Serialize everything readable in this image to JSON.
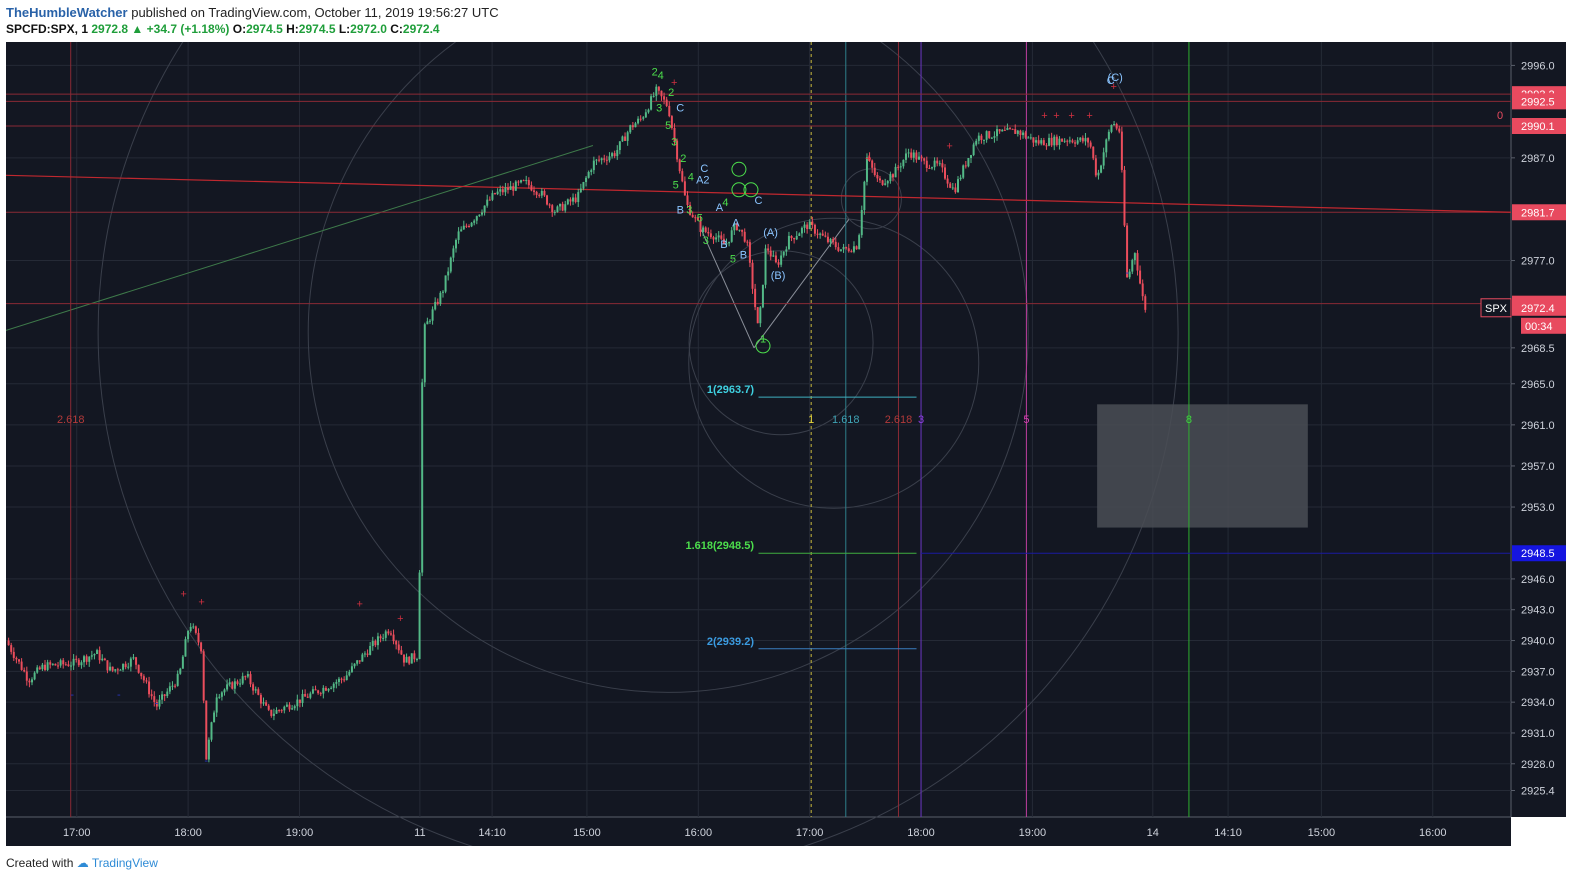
{
  "header": {
    "username": "TheHumbleWatcher",
    "published": "published on TradingView.com, October 11, 2019 19:56:27 UTC",
    "symbol": "SPCFD:SPX, 1",
    "last": "2972.8",
    "change": "+34.7 (+1.18%)",
    "o_label": "O:",
    "o": "2974.5",
    "h_label": "H:",
    "h": "2974.5",
    "l_label": "L:",
    "l": "2972.0",
    "c_label": "C:",
    "c": "2972.4"
  },
  "footer": {
    "created": "Created with",
    "brand": "TradingView"
  },
  "colors": {
    "bg": "#131722",
    "up": "#53b987",
    "down": "#eb4d5c",
    "grid": "#252a36"
  },
  "chart_data": {
    "type": "candlestick",
    "y_axis": {
      "range": [
        2923.5,
        2997.5
      ],
      "ticks": [
        "2996.0",
        "2987.0",
        "2977.0",
        "2968.5",
        "2965.0",
        "2961.0",
        "2957.0",
        "2953.0",
        "2946.0",
        "2943.0",
        "2940.0",
        "2937.0",
        "2934.0",
        "2931.0",
        "2928.0",
        "2925.4"
      ],
      "tick_values": [
        2996.0,
        2987.0,
        2977.0,
        2968.5,
        2965.0,
        2961.0,
        2957.0,
        2953.0,
        2946.0,
        2943.0,
        2940.0,
        2937.0,
        2934.0,
        2931.0,
        2928.0,
        2925.4
      ]
    },
    "x_axis": {
      "labels": [
        "17:00",
        "18:00",
        "19:00",
        "11",
        "14:10",
        "15:00",
        "16:00",
        "17:00",
        "18:00",
        "19:00",
        "14",
        "14:10",
        "15:00",
        "16:00"
      ],
      "label_pos": [
        0.047,
        0.121,
        0.195,
        0.275,
        0.323,
        0.386,
        0.46,
        0.534,
        0.608,
        0.682,
        0.762,
        0.812,
        0.874,
        0.948
      ]
    },
    "price_tags": [
      {
        "value": 2993.2,
        "text": "2993.2",
        "color": "#e84a5f"
      },
      {
        "value": 2992.5,
        "text": "2992.5",
        "color": "#e84a5f"
      },
      {
        "value": 2990.1,
        "text": "2990.1",
        "color": "#e84a5f"
      },
      {
        "value": 2981.7,
        "text": "2981.7",
        "color": "#e84a5f"
      },
      {
        "value": 2972.8,
        "text": "2972.8",
        "color": "#e84a5f"
      },
      {
        "value": 2972.4,
        "text": "2972.4",
        "color": "#e84a5f"
      },
      {
        "value": 2948.5,
        "text": "2948.5",
        "color": "#1515e0"
      }
    ],
    "countdown": "00:34",
    "symbol_tag": "SPX",
    "fib_labels": [
      {
        "text": "1(2963.7)",
        "value": 2963.7,
        "color": "#3fd0e0"
      },
      {
        "text": "1.618(2948.5)",
        "value": 2948.5,
        "color": "#4cde4c"
      },
      {
        "text": "2(2939.2)",
        "value": 2939.2,
        "color": "#3b9be0"
      }
    ],
    "time_markers": [
      {
        "text": "2.618",
        "pos": 0.043,
        "color": "#b23a3a"
      },
      {
        "text": "1",
        "pos": 0.535,
        "color": "#e3d33c"
      },
      {
        "text": "1.618",
        "pos": 0.558,
        "color": "#3fa3b5"
      },
      {
        "text": "2.618",
        "pos": 0.593,
        "color": "#b23a3a"
      },
      {
        "text": "3",
        "pos": 0.608,
        "color": "#8f3fe0"
      },
      {
        "text": "5",
        "pos": 0.678,
        "color": "#d63fb2"
      },
      {
        "text": "8",
        "pos": 0.786,
        "color": "#3fd63f"
      }
    ],
    "zero_label": "0",
    "wave_labels": [
      "2",
      "4",
      "2",
      "3",
      "5",
      "3",
      "C",
      "2",
      "5",
      "4",
      "A2",
      "C",
      "B",
      "3",
      "A",
      "C",
      "A",
      "B",
      "5",
      "B",
      "4",
      "3",
      "5",
      "1",
      "(A)",
      "(B)",
      "C",
      "(C)"
    ],
    "price_path": [
      [
        0,
        2940.0
      ],
      [
        0.015,
        2936.2
      ],
      [
        0.025,
        2937.5
      ],
      [
        0.045,
        2937.8
      ],
      [
        0.06,
        2938.8
      ],
      [
        0.07,
        2937.0
      ],
      [
        0.085,
        2938.2
      ],
      [
        0.1,
        2933.6
      ],
      [
        0.115,
        2936.5
      ],
      [
        0.122,
        2941.8
      ],
      [
        0.13,
        2939.2
      ],
      [
        0.133,
        2928.5
      ],
      [
        0.14,
        2934.8
      ],
      [
        0.16,
        2936.5
      ],
      [
        0.175,
        2932.8
      ],
      [
        0.195,
        2934.2
      ],
      [
        0.225,
        2936.4
      ],
      [
        0.24,
        2939.0
      ],
      [
        0.255,
        2941.2
      ],
      [
        0.265,
        2938.0
      ],
      [
        0.274,
        2938.6
      ],
      [
        0.277,
        2970.0
      ],
      [
        0.285,
        2972.5
      ],
      [
        0.29,
        2974.0
      ],
      [
        0.3,
        2979.5
      ],
      [
        0.31,
        2981.0
      ],
      [
        0.325,
        2983.5
      ],
      [
        0.345,
        2984.6
      ],
      [
        0.355,
        2983.6
      ],
      [
        0.365,
        2981.8
      ],
      [
        0.38,
        2983.2
      ],
      [
        0.39,
        2986.5
      ],
      [
        0.405,
        2987.5
      ],
      [
        0.415,
        2990.0
      ],
      [
        0.422,
        2990.8
      ],
      [
        0.432,
        2993.5
      ],
      [
        0.44,
        2992.0
      ],
      [
        0.445,
        2988.0
      ],
      [
        0.452,
        2982.5
      ],
      [
        0.462,
        2980.0
      ],
      [
        0.47,
        2979.5
      ],
      [
        0.478,
        2978.5
      ],
      [
        0.485,
        2980.5
      ],
      [
        0.492,
        2979.0
      ],
      [
        0.5,
        2970.0
      ],
      [
        0.505,
        2978.5
      ],
      [
        0.512,
        2976.5
      ],
      [
        0.52,
        2979.0
      ],
      [
        0.533,
        2980.5
      ],
      [
        0.545,
        2979.0
      ],
      [
        0.556,
        2978.0
      ],
      [
        0.566,
        2978.5
      ],
      [
        0.572,
        2987.0
      ],
      [
        0.58,
        2984.5
      ],
      [
        0.59,
        2985.5
      ],
      [
        0.6,
        2987.6
      ],
      [
        0.61,
        2986.5
      ],
      [
        0.62,
        2986.2
      ],
      [
        0.63,
        2983.8
      ],
      [
        0.645,
        2989.0
      ],
      [
        0.66,
        2989.4
      ],
      [
        0.672,
        2989.6
      ],
      [
        0.685,
        2988.5
      ],
      [
        0.705,
        2988.8
      ],
      [
        0.72,
        2988.6
      ],
      [
        0.725,
        2985.0
      ],
      [
        0.73,
        2988.0
      ],
      [
        0.735,
        2990.5
      ],
      [
        0.74,
        2989.6
      ],
      [
        0.745,
        2975.0
      ],
      [
        0.75,
        2978.0
      ],
      [
        0.755,
        2973.5
      ],
      [
        0.757,
        2972.4
      ]
    ],
    "horizontal_levels": [
      2993.2,
      2992.5,
      2990.1,
      2981.7,
      2972.8
    ],
    "trendline_start": [
      0,
      2985.3
    ],
    "trendline_end": [
      1,
      2981.7
    ],
    "grey_box": {
      "x0": 0.725,
      "x1": 0.865,
      "y0": 2963.0,
      "y1": 2951.0
    }
  }
}
